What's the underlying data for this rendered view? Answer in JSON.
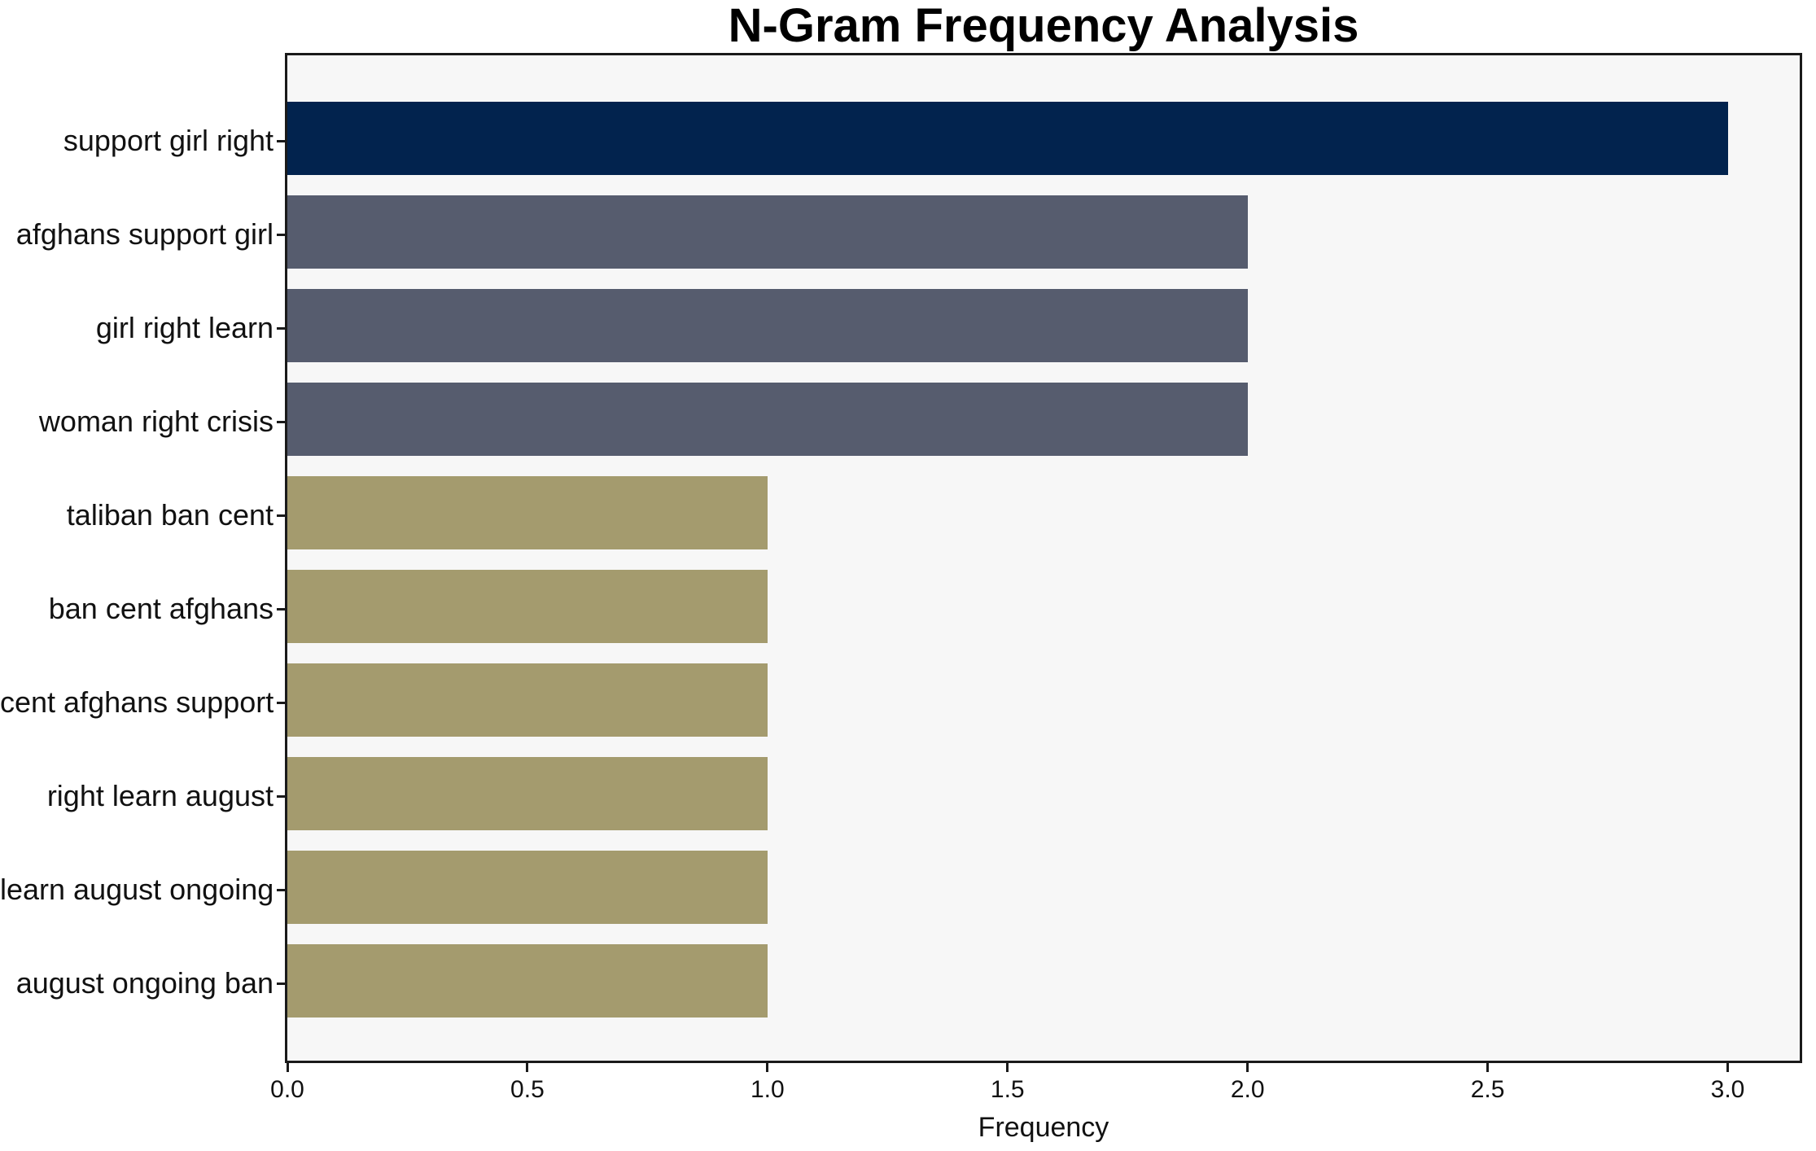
{
  "title": "N-Gram Frequency Analysis",
  "chart_data": {
    "type": "bar",
    "orientation": "horizontal",
    "title": "N-Gram Frequency Analysis",
    "categories": [
      "support girl right",
      "afghans support girl",
      "girl right learn",
      "woman right crisis",
      "taliban ban cent",
      "ban cent afghans",
      "cent afghans support",
      "right learn august",
      "learn august ongoing",
      "august ongoing ban"
    ],
    "values": [
      3,
      2,
      2,
      2,
      1,
      1,
      1,
      1,
      1,
      1
    ],
    "bar_colors": [
      "#02234e",
      "#565c6e",
      "#565c6e",
      "#565c6e",
      "#a49b6e",
      "#a49b6e",
      "#a49b6e",
      "#a49b6e",
      "#a49b6e",
      "#a49b6e"
    ],
    "xlabel": "Frequency",
    "xtick_labels": [
      "0.0",
      "0.5",
      "1.0",
      "1.5",
      "2.0",
      "2.5",
      "3.0"
    ],
    "xtick_values": [
      0,
      0.5,
      1.0,
      1.5,
      2.0,
      2.5,
      3.0
    ],
    "xlim": [
      0,
      3.15
    ],
    "grid": false,
    "legend": null,
    "colors": {
      "plot_background": "#f7f7f7",
      "figure_background": "#ffffff",
      "axis_box": "#1a1a1a",
      "text": "#111111",
      "value_3": "#02234e",
      "value_2": "#565c6e",
      "value_1": "#a49b6e"
    }
  }
}
